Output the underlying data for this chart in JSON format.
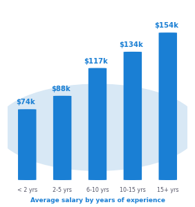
{
  "categories": [
    "< 2 yrs",
    "2-5 yrs",
    "6-10 yrs",
    "10-15 yrs",
    "15+ yrs"
  ],
  "values": [
    74,
    88,
    117,
    134,
    154
  ],
  "labels": [
    "$74k",
    "$88k",
    "$117k",
    "$134k",
    "$154k"
  ],
  "bar_color": "#1a7fd4",
  "bar_width": 0.52,
  "background_color": "#ffffff",
  "ellipse_color": "#d8e8f5",
  "label_color": "#1a7fd4",
  "tick_color": "#555566",
  "caption": "Average salary by years of experience",
  "caption_color": "#1a7fd4",
  "ylim": [
    0,
    175
  ],
  "label_offsets": [
    0,
    0,
    0,
    0,
    0
  ]
}
